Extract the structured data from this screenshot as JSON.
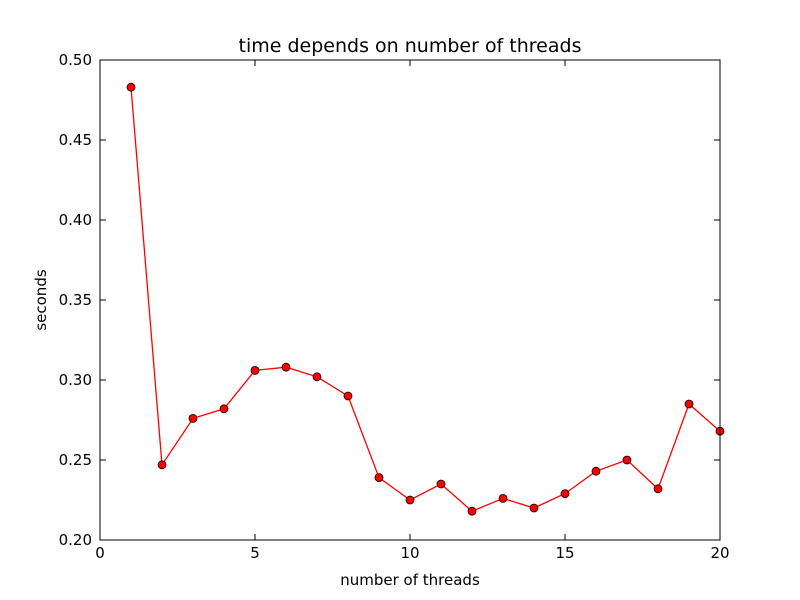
{
  "chart_data": {
    "type": "line",
    "title": "time depends on number of threads",
    "xlabel": "number of threads",
    "ylabel": "seconds",
    "xlim": [
      0,
      20
    ],
    "ylim": [
      0.2,
      0.5
    ],
    "xticks": [
      0,
      5,
      10,
      15,
      20
    ],
    "xtick_labels": [
      "0",
      "5",
      "10",
      "15",
      "20"
    ],
    "yticks": [
      0.2,
      0.25,
      0.3,
      0.35,
      0.4,
      0.45,
      0.5
    ],
    "ytick_labels": [
      "0.20",
      "0.25",
      "0.30",
      "0.35",
      "0.40",
      "0.45",
      "0.50"
    ],
    "grid": false,
    "series": [
      {
        "color": "#ff0000",
        "marker": "circle",
        "x": [
          1,
          2,
          3,
          4,
          5,
          6,
          7,
          8,
          9,
          10,
          11,
          12,
          13,
          14,
          15,
          16,
          17,
          18,
          19,
          20
        ],
        "y": [
          0.483,
          0.247,
          0.276,
          0.282,
          0.306,
          0.308,
          0.302,
          0.29,
          0.239,
          0.225,
          0.235,
          0.218,
          0.226,
          0.22,
          0.229,
          0.243,
          0.25,
          0.232,
          0.285,
          0.268
        ]
      }
    ]
  }
}
